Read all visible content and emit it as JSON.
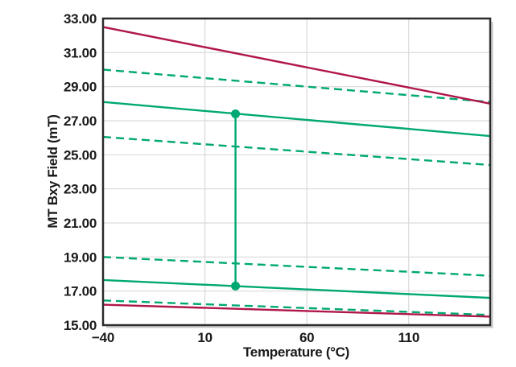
{
  "page": {
    "background": "#ffffff"
  },
  "chart_data": {
    "type": "line",
    "title": "",
    "xlabel": "Temperature (°C)",
    "ylabel": "MT Bxy Field (mT)",
    "xlim": [
      -40,
      150
    ],
    "ylim": [
      15.0,
      33.0
    ],
    "grid": true,
    "legend": "none",
    "x_ticks": [
      {
        "value": -40,
        "label": "−40"
      },
      {
        "value": 10,
        "label": "10"
      },
      {
        "value": 60,
        "label": "60"
      },
      {
        "value": 110,
        "label": "110"
      }
    ],
    "y_ticks": [
      {
        "value": 15,
        "label": "15.00"
      },
      {
        "value": 17,
        "label": "17.00"
      },
      {
        "value": 19,
        "label": "19.00"
      },
      {
        "value": 21,
        "label": "21.00"
      },
      {
        "value": 23,
        "label": "23.00"
      },
      {
        "value": 25,
        "label": "25.00"
      },
      {
        "value": 27,
        "label": "27.00"
      },
      {
        "value": 29,
        "label": "29.00"
      },
      {
        "value": 31,
        "label": "31.00"
      },
      {
        "value": 33,
        "label": "33.00"
      }
    ],
    "colors": {
      "red": "#B01647",
      "green": "#00A873",
      "grid": "#D9D9D9",
      "axis": "#2B2B2B",
      "shadow": "#C9C9C9",
      "text": "#1A1A1A"
    },
    "series": [
      {
        "name": "bxy-max-red-limit",
        "color_key": "red",
        "dash": false,
        "x": [
          -40,
          150
        ],
        "values": [
          32.5,
          28.0
        ]
      },
      {
        "name": "bxy-max-outer-dashed",
        "color_key": "green",
        "dash": true,
        "x": [
          -40,
          150
        ],
        "values": [
          30.0,
          28.1
        ]
      },
      {
        "name": "bxy-max-solid",
        "color_key": "green",
        "dash": false,
        "x": [
          -40,
          150
        ],
        "values": [
          28.1,
          26.1
        ]
      },
      {
        "name": "bxy-max-inner-dashed",
        "color_key": "green",
        "dash": true,
        "x": [
          -40,
          150
        ],
        "values": [
          26.05,
          24.4
        ]
      },
      {
        "name": "bxy-min-inner-dashed",
        "color_key": "green",
        "dash": true,
        "x": [
          -40,
          150
        ],
        "values": [
          19.0,
          17.9
        ]
      },
      {
        "name": "bxy-min-solid",
        "color_key": "green",
        "dash": false,
        "x": [
          -40,
          150
        ],
        "values": [
          17.65,
          16.6
        ]
      },
      {
        "name": "bxy-min-outer-dashed",
        "color_key": "green",
        "dash": true,
        "x": [
          -40,
          150
        ],
        "values": [
          16.45,
          15.6
        ]
      },
      {
        "name": "bxy-min-red-limit",
        "color_key": "red",
        "dash": false,
        "x": [
          -40,
          150
        ],
        "values": [
          16.2,
          15.5
        ]
      }
    ],
    "annotations": [
      {
        "name": "field-range-at-25c",
        "type": "vertical-range",
        "x": 25,
        "y_from": 17.3,
        "y_to": 27.4,
        "color_key": "green",
        "markers": "circle"
      }
    ],
    "line_width": 2.4,
    "dash_pattern": "10 6",
    "marker_radius": 5.5
  },
  "layout_note": ""
}
